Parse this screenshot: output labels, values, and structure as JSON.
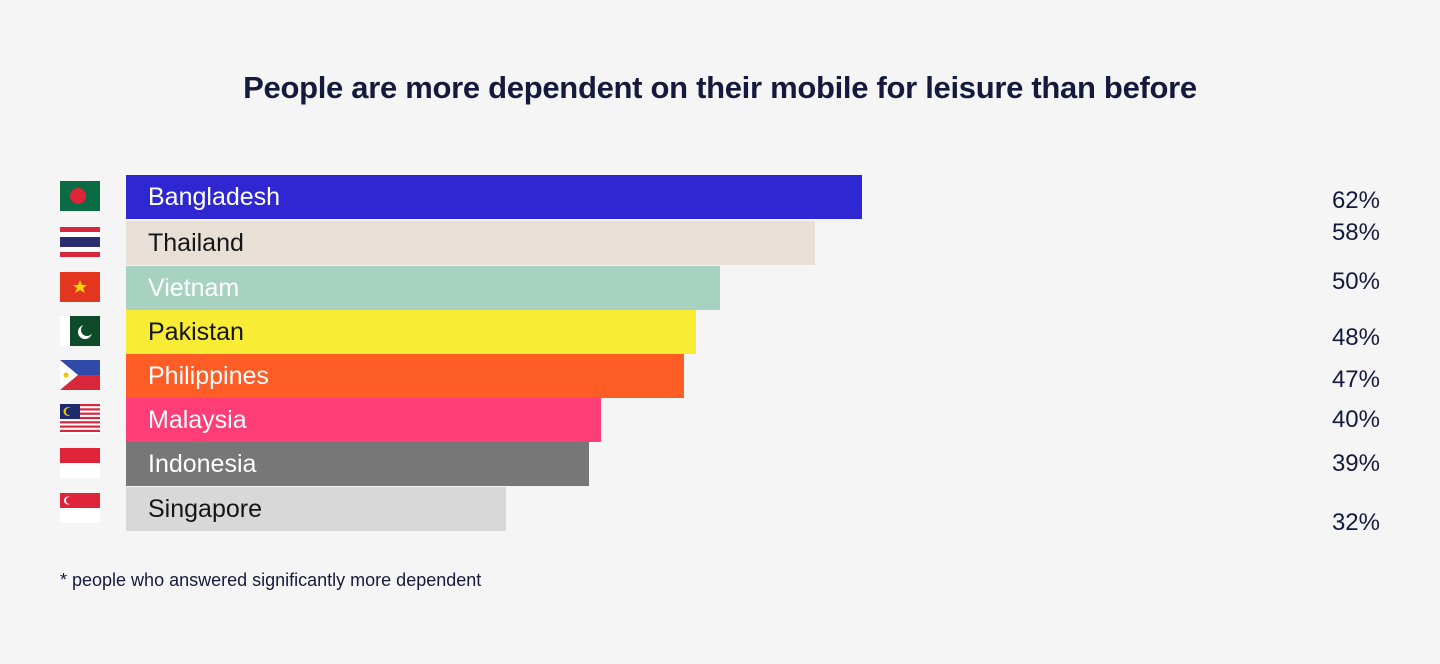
{
  "chart_data": {
    "type": "bar",
    "orientation": "horizontal",
    "title": "People are more dependent on their mobile for leisure than before",
    "categories": [
      "Bangladesh",
      "Thailand",
      "Vietnam",
      "Pakistan",
      "Philippines",
      "Malaysia",
      "Indonesia",
      "Singapore"
    ],
    "values": [
      62,
      58,
      50,
      48,
      47,
      40,
      39,
      32
    ],
    "value_labels": [
      "62%",
      "58%",
      "50%",
      "48%",
      "47%",
      "40%",
      "39%",
      "32%"
    ],
    "colors": [
      "#2f28d2",
      "#e8dfd6",
      "#a7d2c0",
      "#f8ec35",
      "#ff5c26",
      "#ff3d76",
      "#777777",
      "#d8d8d8"
    ],
    "label_colors": [
      "#ffffff",
      "#151515",
      "#ffffff",
      "#151515",
      "#ffffff",
      "#ffffff",
      "#ffffff",
      "#151515"
    ],
    "flags": [
      "bangladesh-flag",
      "thailand-flag",
      "vietnam-flag",
      "pakistan-flag",
      "philippines-flag",
      "malaysia-flag",
      "indonesia-flag",
      "singapore-flag"
    ],
    "xlim": [
      0,
      62
    ],
    "footnote": "* people who answered significantly more dependent"
  }
}
